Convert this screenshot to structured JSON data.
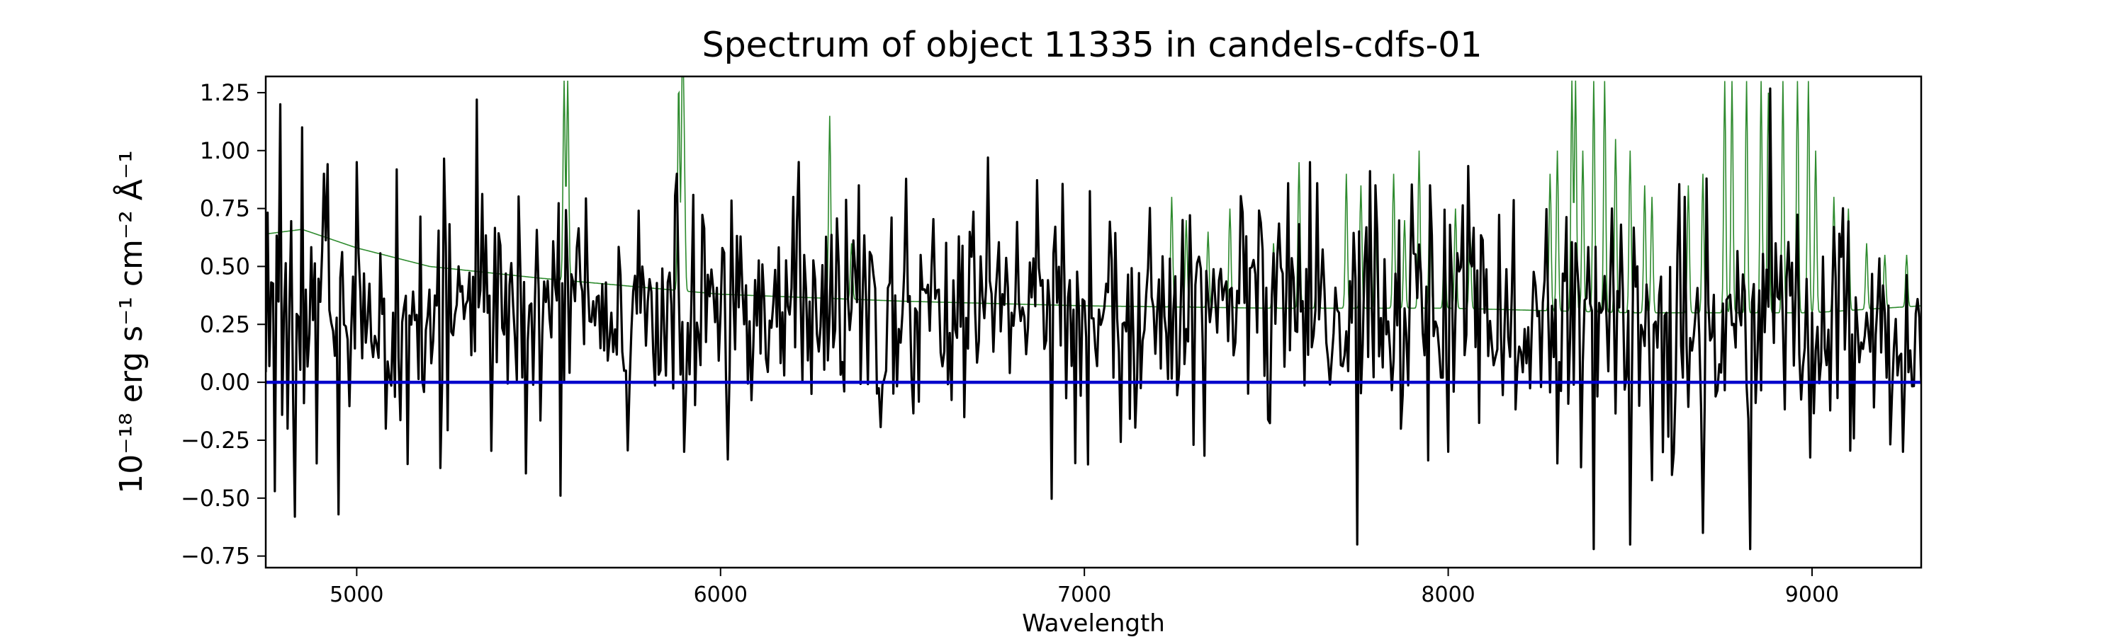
{
  "chart_data": {
    "type": "line",
    "title": "Spectrum of object 11335 in candels-cdfs-01",
    "xlabel": "Wavelength",
    "ylabel": "10⁻¹⁸ erg s⁻¹ cm⁻² Å⁻¹",
    "xlim": [
      4750,
      9300
    ],
    "ylim": [
      -0.8,
      1.32
    ],
    "x_ticks": [
      5000,
      6000,
      7000,
      8000,
      9000
    ],
    "y_ticks": [
      1.25,
      1.0,
      0.75,
      0.5,
      0.25,
      0.0,
      -0.25,
      -0.5,
      -0.75
    ],
    "y_tick_labels": [
      "1.25",
      "1.00",
      "0.75",
      "0.50",
      "0.25",
      "0.00",
      "−0.25",
      "−0.50",
      "−0.75"
    ],
    "grid": false,
    "series": [
      {
        "id": "flux",
        "style": "noisy-spectrum",
        "color": "#000000",
        "wavelength_range": [
          4750,
          9300
        ],
        "x": [
          4760,
          4775,
          4790,
          4800,
          4810,
          4830,
          4850,
          4860,
          4890,
          4910,
          4950,
          5000,
          5050,
          5080,
          5100,
          5200,
          5230,
          5280,
          5330,
          5360,
          5500,
          5600,
          5700,
          5800,
          5880,
          5900,
          6000,
          6200,
          6250,
          6300,
          6380,
          6500,
          6600,
          6700,
          6735,
          6800,
          7000,
          7200,
          7300,
          7400,
          7600,
          7620,
          7700,
          7750,
          7800,
          7850,
          7950,
          8000,
          8100,
          8300,
          8350,
          8400,
          8420,
          8450,
          8500,
          8600,
          8650,
          8700,
          8800,
          8830,
          8900,
          9000,
          9150,
          9250,
          9300
        ],
        "y": [
          0.07,
          -0.47,
          1.2,
          0.3,
          -0.2,
          -0.58,
          1.1,
          0.4,
          -0.35,
          0.9,
          -0.57,
          0.95,
          0.2,
          -0.2,
          0.3,
          0.4,
          -0.37,
          0.5,
          1.22,
          0.3,
          0.4,
          0.35,
          0.3,
          0.35,
          0.9,
          -0.3,
          0.3,
          0.8,
          -0.05,
          0.3,
          0.85,
          0.3,
          0.4,
          0.3,
          0.97,
          0.3,
          0.35,
          0.3,
          -0.27,
          0.4,
          0.35,
          0.95,
          0.3,
          -0.7,
          0.85,
          0.1,
          0.85,
          -0.3,
          0.3,
          -0.35,
          0.6,
          -0.72,
          0.3,
          0.75,
          -0.7,
          0.3,
          0.8,
          -0.65,
          0.3,
          -0.72,
          0.6,
          0.3,
          0.3,
          -0.3,
          0.0
        ],
        "noise_sigma": 0.32,
        "baseline": [
          [
            4750,
            0.28
          ],
          [
            6000,
            0.3
          ],
          [
            7000,
            0.33
          ],
          [
            8000,
            0.3
          ],
          [
            9300,
            0.2
          ]
        ]
      },
      {
        "id": "model",
        "color": "#2e8b2e",
        "continuum": [
          [
            4750,
            0.64
          ],
          [
            4850,
            0.66
          ],
          [
            5000,
            0.58
          ],
          [
            5200,
            0.5
          ],
          [
            5500,
            0.45
          ],
          [
            6000,
            0.38
          ],
          [
            6500,
            0.35
          ],
          [
            7000,
            0.33
          ],
          [
            7500,
            0.32
          ],
          [
            8000,
            0.32
          ],
          [
            8500,
            0.3
          ],
          [
            9000,
            0.3
          ],
          [
            9300,
            0.33
          ]
        ],
        "peaks": [
          [
            5570,
            1.3
          ],
          [
            5580,
            1.3
          ],
          [
            5885,
            1.3
          ],
          [
            5895,
            1.3
          ],
          [
            5900,
            0.95
          ],
          [
            6300,
            1.15
          ],
          [
            6360,
            0.6
          ],
          [
            7240,
            0.8
          ],
          [
            7280,
            0.7
          ],
          [
            7340,
            0.65
          ],
          [
            7400,
            0.75
          ],
          [
            7520,
            0.6
          ],
          [
            7590,
            0.95
          ],
          [
            7640,
            0.75
          ],
          [
            7720,
            0.9
          ],
          [
            7760,
            0.85
          ],
          [
            7800,
            0.8
          ],
          [
            7850,
            0.9
          ],
          [
            7880,
            0.7
          ],
          [
            7920,
            1.0
          ],
          [
            7950,
            0.85
          ],
          [
            7990,
            0.7
          ],
          [
            8020,
            0.75
          ],
          [
            8060,
            0.65
          ],
          [
            8280,
            0.9
          ],
          [
            8300,
            1.0
          ],
          [
            8340,
            1.3
          ],
          [
            8350,
            1.3
          ],
          [
            8370,
            1.0
          ],
          [
            8400,
            1.3
          ],
          [
            8430,
            1.3
          ],
          [
            8460,
            1.05
          ],
          [
            8500,
            1.0
          ],
          [
            8540,
            0.85
          ],
          [
            8560,
            0.8
          ],
          [
            8660,
            0.85
          ],
          [
            8700,
            0.9
          ],
          [
            8760,
            1.3
          ],
          [
            8780,
            1.3
          ],
          [
            8820,
            1.3
          ],
          [
            8860,
            1.3
          ],
          [
            8880,
            1.25
          ],
          [
            8920,
            1.3
          ],
          [
            8960,
            1.3
          ],
          [
            8990,
            1.3
          ],
          [
            9010,
            1.0
          ],
          [
            9060,
            0.8
          ],
          [
            9100,
            0.75
          ],
          [
            9150,
            0.6
          ],
          [
            9200,
            0.55
          ],
          [
            9260,
            0.55
          ]
        ]
      },
      {
        "id": "zero-line",
        "color": "#0000cc",
        "value": 0.0
      }
    ]
  }
}
